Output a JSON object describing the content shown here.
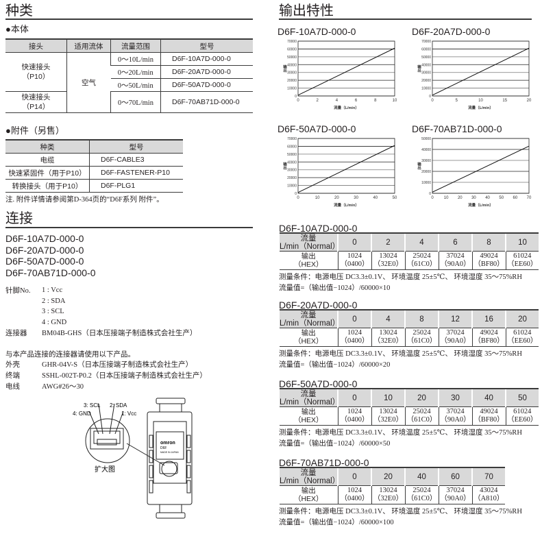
{
  "types": {
    "title": "种类",
    "body_heading": "●本体",
    "body_table": {
      "headers": [
        "接头",
        "适用流体",
        "流量范围",
        "型号"
      ],
      "connectors": [
        "快速接头\n（P10）",
        "快速接头\n（P14）"
      ],
      "fluid": "空气",
      "rows": [
        [
          "0～10L/min",
          "D6F-10A7D-000-0"
        ],
        [
          "0～20L/min",
          "D6F-20A7D-000-0"
        ],
        [
          "0～50L/min",
          "D6F-50A7D-000-0"
        ],
        [
          "0～70L/min",
          "D6F-70AB71D-000-0"
        ]
      ]
    },
    "acc_heading": "●附件（另售）",
    "acc_table": {
      "headers": [
        "种类",
        "型号"
      ],
      "rows": [
        [
          "电缆",
          "D6F-CABLE3"
        ],
        [
          "快速紧固件（用于P10）",
          "D6F-FASTENER-P10"
        ],
        [
          "转换接头（用于P10）",
          "D6F-PLG1"
        ]
      ]
    },
    "note": "注. 附件详情请参阅第D-364页的“D6F系列 附件”。"
  },
  "connection": {
    "title": "连接",
    "models": [
      "D6F-10A7D-000-0",
      "D6F-20A7D-000-0",
      "D6F-50A7D-000-0",
      "D6F-70AB71D-000-0"
    ],
    "pin_label": "针脚No.",
    "pins": [
      "1 : Vcc",
      "2 : SDA",
      "3 : SCL",
      "4 : GND"
    ],
    "connector_label": "连接器",
    "connector_value": "BM04B-GHS（日本压接端子制造株式会社生产）",
    "use_note": "与本产品连接的连接器请使用以下产品。",
    "parts": [
      [
        "外壳",
        "GHR-04V-S（日本压接端子制造株式会社生产）"
      ],
      [
        "终端",
        "SSHL-002T-P0.2（日本压接端子制造株式会社生产）"
      ],
      [
        "电线",
        "AWG#26～30"
      ]
    ],
    "diagram": {
      "pin_labels": [
        "3: SCL",
        "2: SDA",
        "4: GND",
        "1: Vcc"
      ],
      "caption": "扩大图",
      "logo": "omron",
      "logo_sub": "D6F",
      "made": "MADE IN JAPAN"
    }
  },
  "output": {
    "title": "输出特性"
  },
  "chart_data": [
    {
      "type": "line",
      "title": "D6F-10A7D-000-0",
      "xlabel": "流量（L/min）",
      "ylabel": "输出",
      "xlim": [
        0,
        10
      ],
      "ylim": [
        0,
        70000
      ],
      "xticks": [
        0,
        2,
        4,
        6,
        8,
        10
      ],
      "yticks": [
        0,
        10000,
        20000,
        30000,
        40000,
        50000,
        60000,
        70000
      ],
      "x": [
        0,
        10
      ],
      "y": [
        1024,
        61024
      ],
      "grid": true
    },
    {
      "type": "line",
      "title": "D6F-20A7D-000-0",
      "xlabel": "流量（L/min）",
      "ylabel": "输出",
      "xlim": [
        0,
        20
      ],
      "ylim": [
        0,
        70000
      ],
      "xticks": [
        0,
        5,
        10,
        15,
        20
      ],
      "yticks": [
        0,
        10000,
        20000,
        30000,
        40000,
        50000,
        60000,
        70000
      ],
      "x": [
        0,
        20
      ],
      "y": [
        1024,
        61024
      ],
      "grid": true
    },
    {
      "type": "line",
      "title": "D6F-50A7D-000-0",
      "xlabel": "流量（L/min）",
      "ylabel": "输出",
      "xlim": [
        0,
        50
      ],
      "ylim": [
        0,
        70000
      ],
      "xticks": [
        0,
        10,
        20,
        30,
        40,
        50
      ],
      "yticks": [
        0,
        10000,
        20000,
        30000,
        40000,
        50000,
        60000,
        70000
      ],
      "x": [
        0,
        50
      ],
      "y": [
        1024,
        61024
      ],
      "grid": true
    },
    {
      "type": "line",
      "title": "D6F-70AB71D-000-0",
      "xlabel": "流量（L/min）",
      "ylabel": "输出",
      "xlim": [
        0,
        70
      ],
      "ylim": [
        0,
        50000
      ],
      "xticks": [
        0,
        10,
        20,
        30,
        40,
        50,
        60,
        70
      ],
      "yticks": [
        0,
        10000,
        20000,
        30000,
        40000,
        50000
      ],
      "x": [
        0,
        70
      ],
      "y": [
        1024,
        43024
      ],
      "grid": true
    }
  ],
  "output_tables": [
    {
      "title": "D6F-10A7D-000-0",
      "flow_label": "流量\nL/min（Normal）",
      "out_label": "输出\n（HEX）",
      "flows": [
        "0",
        "2",
        "4",
        "6",
        "8",
        "10"
      ],
      "outputs": [
        "1024\n（0400）",
        "13024\n（32E0）",
        "25024\n（61C0）",
        "37024\n（90A0）",
        "49024\n（BF80）",
        "61024\n（EE60）"
      ],
      "cond": "测量条件：电源电压 DC3.3±0.1V、 环境温度 25±5℃、 环境湿度 35～75%RH",
      "formula": "流量值=（输出值−1024）/60000×10"
    },
    {
      "title": "D6F-20A7D-000-0",
      "flow_label": "流量\nL/min（Normal）",
      "out_label": "输出\n（HEX）",
      "flows": [
        "0",
        "4",
        "8",
        "12",
        "16",
        "20"
      ],
      "outputs": [
        "1024\n（0400）",
        "13024\n（32E0）",
        "25024\n（61C0）",
        "37024\n（90A0）",
        "49024\n（BF80）",
        "61024\n（EE60）"
      ],
      "cond": "测量条件：电源电压 DC3.3±0.1V、 环境温度 25±5℃、 环境湿度 35～75%RH",
      "formula": "流量值=（输出值−1024）/60000×20"
    },
    {
      "title": "D6F-50A7D-000-0",
      "flow_label": "流量\nL/min（Normal）",
      "out_label": "输出\n（HEX）",
      "flows": [
        "0",
        "10",
        "20",
        "30",
        "40",
        "50"
      ],
      "outputs": [
        "1024\n（0400）",
        "13024\n（32E0）",
        "25024\n（61C0）",
        "37024\n（90A0）",
        "49024\n（BF80）",
        "61024\n（EE60）"
      ],
      "cond": "测量条件：电源电压 DC3.3±0.1V、 环境温度 25±5℃、 环境湿度 35～75%RH",
      "formula": "流量值=（输出值−1024）/60000×50"
    },
    {
      "title": "D6F-70AB71D-000-0",
      "flow_label": "流量\nL/min（Normal）",
      "out_label": "输出\n（HEX）",
      "flows": [
        "0",
        "20",
        "40",
        "60",
        "70"
      ],
      "outputs": [
        "1024\n（0400）",
        "13024\n（32E0）",
        "25024\n（61C0）",
        "37024\n（90A0）",
        "43024\n（A810）"
      ],
      "cond": "测量条件：电源电压 DC3.3±0.1V、 环境温度 25±5℃、 环境湿度 35～75%RH",
      "formula": "流量值=（输出值−1024）/60000×100"
    }
  ]
}
